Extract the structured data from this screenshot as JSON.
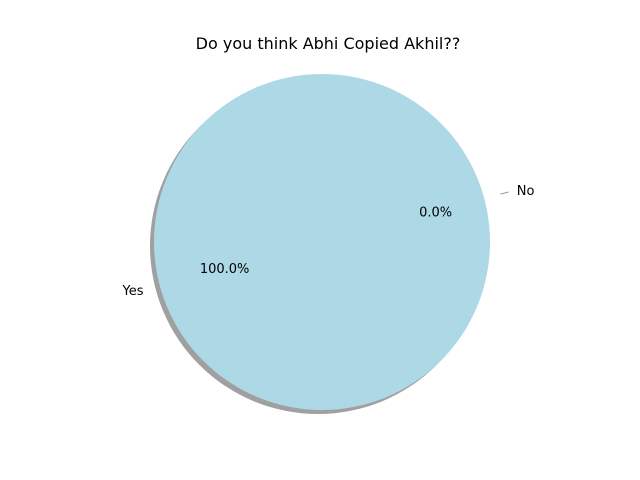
{
  "chart_data": {
    "type": "pie",
    "title": "Do you think Abhi Copied Akhil??",
    "labels": [
      "Yes",
      "No"
    ],
    "values": [
      100.0,
      0.0
    ],
    "percent_labels": [
      "100.0%",
      "0.0%"
    ],
    "colors": [
      "#add8e6",
      "#add8e6"
    ],
    "exploded": [
      "No"
    ],
    "shadow": true,
    "shadow_color": "#808080",
    "leader_line_color": "#999999"
  }
}
